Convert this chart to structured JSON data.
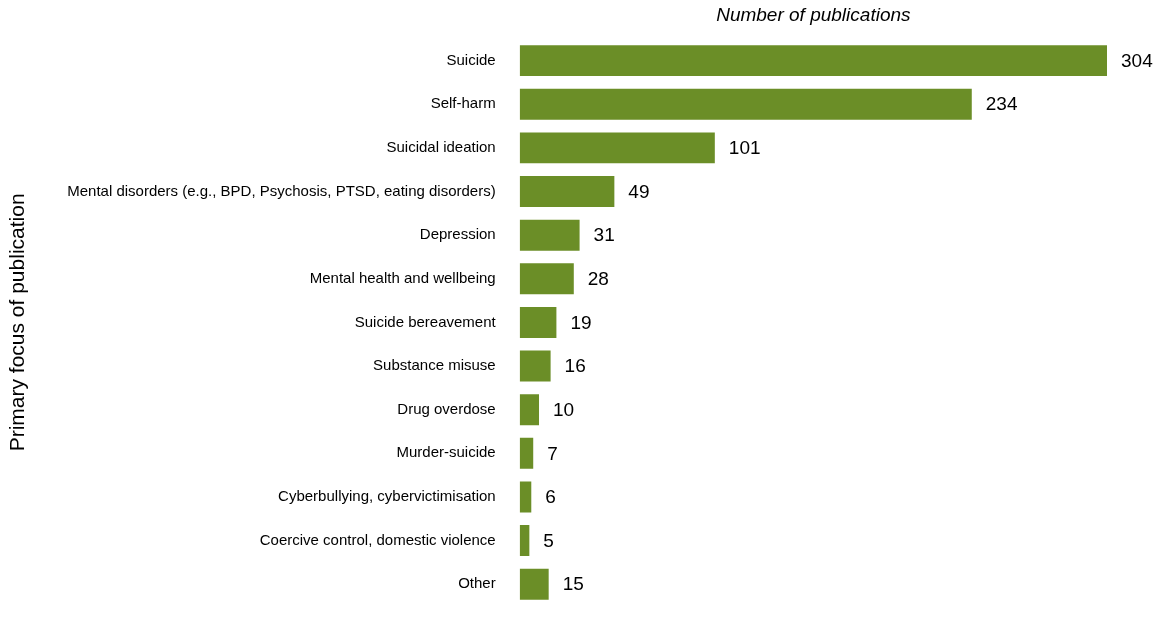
{
  "chart_data": {
    "type": "bar",
    "orientation": "horizontal",
    "xlabel": "Number of publications",
    "ylabel": "Primary focus of publication",
    "categories": [
      "Suicide",
      "Self-harm",
      "Suicidal ideation",
      "Mental disorders (e.g., BPD, Psychosis, PTSD, eating disorders)",
      "Depression",
      "Mental health and wellbeing",
      "Suicide bereavement",
      "Substance misuse",
      "Drug overdose",
      "Murder-suicide",
      "Cyberbullying, cybervictimisation",
      "Coercive control, domestic violence",
      "Other"
    ],
    "values": [
      304,
      234,
      101,
      49,
      31,
      28,
      19,
      16,
      10,
      7,
      6,
      5,
      15
    ],
    "color": "#6b8e27",
    "data_labels": true,
    "grid": false,
    "legend": false
  }
}
